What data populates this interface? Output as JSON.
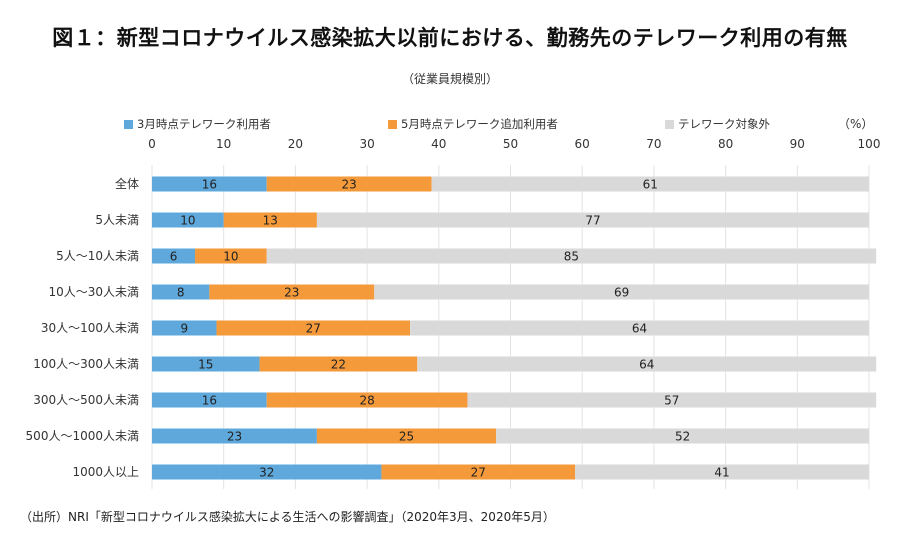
{
  "chart_data": {
    "type": "bar",
    "orientation": "horizontal",
    "stacked": true,
    "title": "図１：新型コロナウイルス感染拡大以前における、勤務先のテレワーク利用の有無",
    "subtitle": "（従業員規模別）",
    "unit_label": "（%）",
    "xlabel": "",
    "ylabel": "",
    "xlim": [
      0,
      100
    ],
    "x_ticks": [
      0,
      10,
      20,
      30,
      40,
      50,
      60,
      70,
      80,
      90,
      100
    ],
    "grid": true,
    "legend_position": "top",
    "categories": [
      "全体",
      "5人未満",
      "5人～10人未満",
      "10人～30人未満",
      "30人～100人未満",
      "100人～300人未満",
      "300人～500人未満",
      "500人～1000人未満",
      "1000人以上"
    ],
    "series": [
      {
        "name": "3月時点テレワーク利用者",
        "color": "#5fa8dc",
        "values": [
          16,
          10,
          6,
          8,
          9,
          15,
          16,
          23,
          32
        ]
      },
      {
        "name": "5月時点テレワーク追加利用者",
        "color": "#f59a3a",
        "values": [
          23,
          13,
          10,
          23,
          27,
          22,
          28,
          25,
          27
        ]
      },
      {
        "name": "テレワーク対象外",
        "color": "#d9d9d9",
        "values": [
          61,
          77,
          85,
          69,
          64,
          64,
          57,
          52,
          41
        ]
      }
    ],
    "source": "（出所）NRI「新型コロナウイルス感染拡大による生活への影響調査」（2020年3月、2020年5月）"
  }
}
